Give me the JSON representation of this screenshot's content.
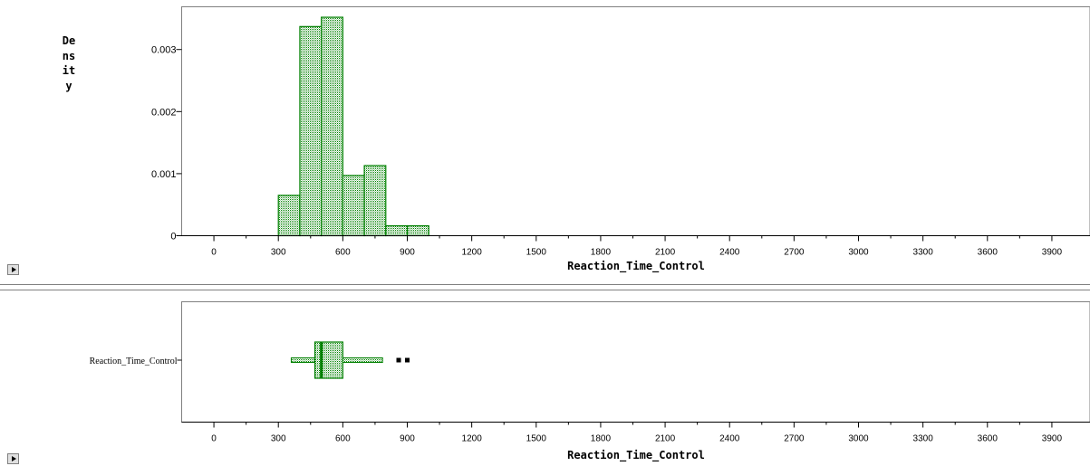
{
  "chart_data": [
    {
      "type": "bar",
      "subtype": "histogram",
      "xlabel": "Reaction_Time_Control",
      "ylabel": "Density",
      "x_ticks": [
        0,
        300,
        600,
        900,
        1200,
        1500,
        1800,
        2100,
        2400,
        2700,
        3000,
        3300,
        3600,
        3900
      ],
      "x_minor_step": 150,
      "xlim": [
        -150,
        4050
      ],
      "y_ticks": [
        "0",
        "0.001",
        "0.002",
        "0.003"
      ],
      "ylim": [
        0,
        0.00355
      ],
      "bins": [
        {
          "start": 300,
          "end": 400,
          "value": 0.00065
        },
        {
          "start": 400,
          "end": 500,
          "value": 0.00337
        },
        {
          "start": 500,
          "end": 600,
          "value": 0.00352
        },
        {
          "start": 600,
          "end": 700,
          "value": 0.00097
        },
        {
          "start": 700,
          "end": 800,
          "value": 0.00113
        },
        {
          "start": 800,
          "end": 900,
          "value": 0.00016
        },
        {
          "start": 900,
          "end": 1000,
          "value": 0.00016
        }
      ],
      "bar_color": "#008000",
      "fill_pattern": "dotted"
    },
    {
      "type": "box",
      "variable": "Reaction_Time_Control",
      "xlabel": "Reaction_Time_Control",
      "x_ticks": [
        0,
        300,
        600,
        900,
        1200,
        1500,
        1800,
        2100,
        2400,
        2700,
        3000,
        3300,
        3600,
        3900
      ],
      "xlim": [
        -150,
        4050
      ],
      "whisker_low": 360,
      "q1": 470,
      "median": 500,
      "q3": 600,
      "whisker_high": 785,
      "outliers": [
        860,
        900
      ],
      "box_color": "#008000",
      "outlier_color": "#000000"
    }
  ]
}
